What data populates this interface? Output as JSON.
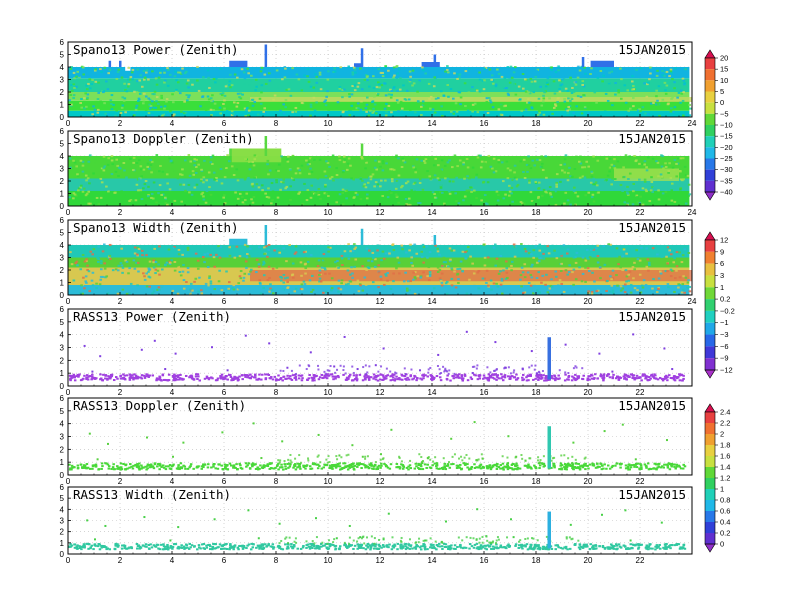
{
  "figure_date": "15JAN2015",
  "chart_data": [
    {
      "type": "heatmap",
      "title": "Spano13 Power (Zenith)",
      "date": "15JAN2015",
      "xlim": [
        0,
        24
      ],
      "ylim": [
        0,
        6
      ],
      "xticks": [
        "0",
        "2",
        "4",
        "6",
        "8",
        "10",
        "12",
        "14",
        "16",
        "18",
        "20",
        "22",
        "24"
      ],
      "yticks": [
        "0",
        "1",
        "2",
        "3",
        "4",
        "5",
        "6"
      ],
      "grid": true,
      "colorbar": "power",
      "layers": [
        {
          "y": [
            0.0,
            0.5
          ],
          "color": "#00c8c8"
        },
        {
          "y": [
            0.5,
            1.3
          ],
          "color": "#3adf3a"
        },
        {
          "y": [
            1.3,
            2.0
          ],
          "color": "#7ce05a"
        },
        {
          "y": [
            2.0,
            3.1
          ],
          "color": "#20d0a0"
        },
        {
          "y": [
            3.1,
            4.0
          ],
          "color": "#10b4e0"
        }
      ],
      "bands": [
        {
          "x": [
            7.0,
            24.0
          ],
          "y": [
            1.2,
            1.6
          ],
          "color": "#c8d860"
        }
      ],
      "top_segments": [
        {
          "x": [
            0.0,
            2.2
          ],
          "top": 4.0
        },
        {
          "x": [
            2.2,
            2.4
          ],
          "top": 3.7
        },
        {
          "x": [
            2.4,
            6.2
          ],
          "top": 4.0
        },
        {
          "x": [
            6.2,
            6.9
          ],
          "top": 4.5
        },
        {
          "x": [
            6.9,
            11.0
          ],
          "top": 4.0
        },
        {
          "x": [
            11.0,
            11.3
          ],
          "top": 4.3
        },
        {
          "x": [
            11.3,
            13.6
          ],
          "top": 4.0
        },
        {
          "x": [
            13.6,
            14.3
          ],
          "top": 4.4
        },
        {
          "x": [
            14.3,
            20.1
          ],
          "top": 4.0
        },
        {
          "x": [
            20.1,
            21.0
          ],
          "top": 4.5
        },
        {
          "x": [
            21.0,
            23.9
          ],
          "top": 4.0
        }
      ],
      "spikes": [
        {
          "x": 1.6,
          "top": 4.5
        },
        {
          "x": 2.0,
          "top": 4.5
        },
        {
          "x": 7.6,
          "top": 5.8
        },
        {
          "x": 11.3,
          "top": 5.5
        },
        {
          "x": 14.1,
          "top": 5.0
        },
        {
          "x": 19.8,
          "top": 4.8
        }
      ],
      "top_color": "#3070e8"
    },
    {
      "type": "heatmap",
      "title": "Spano13 Doppler (Zenith)",
      "date": "15JAN2015",
      "xlim": [
        0,
        24
      ],
      "ylim": [
        0,
        6
      ],
      "xticks": [
        "0",
        "2",
        "4",
        "6",
        "8",
        "10",
        "12",
        "14",
        "16",
        "18",
        "20",
        "22",
        "24"
      ],
      "yticks": [
        "0",
        "1",
        "2",
        "3",
        "4",
        "5",
        "6"
      ],
      "grid": true,
      "colorbar": "power",
      "layers": [
        {
          "y": [
            0.0,
            1.2
          ],
          "color": "#30d83a"
        },
        {
          "y": [
            1.2,
            2.2
          ],
          "color": "#28c8a8"
        },
        {
          "y": [
            2.2,
            4.0
          ],
          "color": "#48d838"
        }
      ],
      "bands": [
        {
          "x": [
            6.3,
            8.2
          ],
          "y": [
            3.5,
            4.6
          ],
          "color": "#98e048"
        },
        {
          "x": [
            21.0,
            23.5
          ],
          "y": [
            2.0,
            3.0
          ],
          "color": "#a8e050"
        }
      ],
      "top_segments": [
        {
          "x": [
            0.0,
            6.2
          ],
          "top": 4.0
        },
        {
          "x": [
            6.2,
            8.2
          ],
          "top": 4.6
        },
        {
          "x": [
            8.2,
            23.9
          ],
          "top": 4.0
        }
      ],
      "spikes": [
        {
          "x": 7.6,
          "top": 5.6
        },
        {
          "x": 11.3,
          "top": 5.0
        }
      ],
      "top_color": "#58d840"
    },
    {
      "type": "heatmap",
      "title": "Spano13 Width (Zenith)",
      "date": "15JAN2015",
      "xlim": [
        0,
        24
      ],
      "ylim": [
        0,
        6
      ],
      "xticks": [
        "0",
        "2",
        "4",
        "6",
        "8",
        "10",
        "12",
        "14",
        "16",
        "18",
        "20",
        "22",
        "24"
      ],
      "yticks": [
        "0",
        "1",
        "2",
        "3",
        "4",
        "5",
        "6"
      ],
      "grid": true,
      "colorbar": "width",
      "layers": [
        {
          "y": [
            0.0,
            0.8
          ],
          "color": "#2cbcd8"
        },
        {
          "y": [
            0.8,
            2.2
          ],
          "color": "#d8c850"
        },
        {
          "y": [
            2.2,
            3.0
          ],
          "color": "#58d038"
        },
        {
          "y": [
            3.0,
            4.0
          ],
          "color": "#20c8b8"
        }
      ],
      "bands": [
        {
          "x": [
            7.0,
            24.0
          ],
          "y": [
            1.1,
            2.0
          ],
          "color": "#e07048"
        }
      ],
      "top_segments": [
        {
          "x": [
            0.0,
            6.2
          ],
          "top": 4.0
        },
        {
          "x": [
            6.2,
            6.9
          ],
          "top": 4.5
        },
        {
          "x": [
            6.9,
            23.9
          ],
          "top": 4.0
        }
      ],
      "spikes": [
        {
          "x": 7.6,
          "top": 5.6
        },
        {
          "x": 11.3,
          "top": 5.3
        },
        {
          "x": 14.1,
          "top": 4.8
        }
      ],
      "top_color": "#2cbcd8"
    },
    {
      "type": "scatter",
      "title": "RASS13 Power (Zenith)",
      "date": "15JAN2015",
      "xlim": [
        0,
        24
      ],
      "ylim": [
        0,
        6
      ],
      "xticks": [
        "0",
        "2",
        "4",
        "6",
        "8",
        "10",
        "12",
        "14",
        "16",
        "18",
        "20",
        "22"
      ],
      "yticks": [
        "0",
        "1",
        "2",
        "3",
        "4",
        "5",
        "6"
      ],
      "grid": true,
      "colorbar": "rass_width",
      "base_band": {
        "y": [
          0.5,
          1.0
        ],
        "color": "#a040e0"
      },
      "column": {
        "x": 18.5,
        "y": [
          0.5,
          3.8
        ],
        "color": "#3870e0"
      },
      "point_color": "#8040e0",
      "points": [
        [
          0.6,
          3.2
        ],
        [
          1.2,
          2.4
        ],
        [
          2.8,
          2.9
        ],
        [
          3.3,
          3.6
        ],
        [
          4.1,
          2.6
        ],
        [
          5.5,
          3.1
        ],
        [
          6.8,
          4.0
        ],
        [
          7.7,
          3.4
        ],
        [
          9.3,
          2.7
        ],
        [
          10.6,
          3.9
        ],
        [
          12.1,
          3.0
        ],
        [
          14.2,
          2.5
        ],
        [
          15.3,
          4.3
        ],
        [
          16.4,
          3.5
        ],
        [
          17.8,
          2.8
        ],
        [
          19.1,
          3.3
        ],
        [
          20.4,
          2.6
        ],
        [
          21.7,
          4.1
        ],
        [
          22.9,
          3.0
        ],
        [
          0.9,
          1.2
        ],
        [
          3.7,
          1.4
        ],
        [
          6.1,
          1.3
        ],
        [
          8.4,
          1.5
        ],
        [
          10.2,
          1.6
        ],
        [
          11.1,
          1.4
        ],
        [
          11.8,
          1.7
        ],
        [
          13.5,
          1.3
        ],
        [
          16.8,
          1.5
        ],
        [
          20.9,
          1.2
        ],
        [
          23.2,
          1.4
        ]
      ]
    },
    {
      "type": "scatter",
      "title": "RASS13 Doppler (Zenith)",
      "date": "15JAN2015",
      "xlim": [
        0,
        24
      ],
      "ylim": [
        0,
        6
      ],
      "xticks": [
        "0",
        "2",
        "4",
        "6",
        "8",
        "10",
        "12",
        "14",
        "16",
        "18",
        "20",
        "22"
      ],
      "yticks": [
        "0",
        "1",
        "2",
        "3",
        "4",
        "5",
        "6"
      ],
      "grid": true,
      "colorbar": "rass_width",
      "base_band": {
        "y": [
          0.5,
          1.0
        ],
        "color": "#48d838"
      },
      "column": {
        "x": 18.5,
        "y": [
          0.5,
          3.8
        ],
        "color": "#30c8b0"
      },
      "point_color": "#58d040",
      "points": [
        [
          0.8,
          3.3
        ],
        [
          1.5,
          2.5
        ],
        [
          3.0,
          3.0
        ],
        [
          4.4,
          2.6
        ],
        [
          5.9,
          3.4
        ],
        [
          7.1,
          4.1
        ],
        [
          8.2,
          2.7
        ],
        [
          9.6,
          3.2
        ],
        [
          10.9,
          2.4
        ],
        [
          12.4,
          3.6
        ],
        [
          14.7,
          2.9
        ],
        [
          15.6,
          4.2
        ],
        [
          16.9,
          3.1
        ],
        [
          19.4,
          2.6
        ],
        [
          20.6,
          3.5
        ],
        [
          21.3,
          4.0
        ],
        [
          23.0,
          2.8
        ],
        [
          1.1,
          1.3
        ],
        [
          4.0,
          1.5
        ],
        [
          7.4,
          1.4
        ],
        [
          10.4,
          1.6
        ],
        [
          11.3,
          1.5
        ],
        [
          12.0,
          1.7
        ],
        [
          13.8,
          1.4
        ],
        [
          17.2,
          1.5
        ],
        [
          21.8,
          1.3
        ]
      ]
    },
    {
      "type": "scatter",
      "title": "RASS13 Width (Zenith)",
      "date": "15JAN2015",
      "xlim": [
        0,
        24
      ],
      "ylim": [
        0,
        6
      ],
      "xticks": [
        "0",
        "2",
        "4",
        "6",
        "8",
        "10",
        "12",
        "14",
        "16",
        "18",
        "20",
        "22"
      ],
      "yticks": [
        "0",
        "1",
        "2",
        "3",
        "4",
        "5",
        "6"
      ],
      "grid": true,
      "colorbar": "rass_width",
      "base_band": {
        "y": [
          0.5,
          1.0
        ],
        "color": "#30c8a0"
      },
      "column": {
        "x": 18.5,
        "y": [
          0.5,
          3.8
        ],
        "color": "#2cb0e0"
      },
      "point_color": "#48d048",
      "points": [
        [
          0.7,
          3.1
        ],
        [
          1.4,
          2.6
        ],
        [
          2.9,
          3.4
        ],
        [
          4.2,
          2.5
        ],
        [
          5.6,
          3.2
        ],
        [
          6.9,
          4.0
        ],
        [
          8.1,
          2.8
        ],
        [
          9.5,
          3.3
        ],
        [
          10.8,
          2.6
        ],
        [
          12.3,
          3.7
        ],
        [
          14.5,
          3.0
        ],
        [
          15.7,
          4.1
        ],
        [
          17.0,
          3.2
        ],
        [
          19.3,
          2.7
        ],
        [
          20.5,
          3.6
        ],
        [
          21.4,
          4.0
        ],
        [
          22.8,
          2.9
        ],
        [
          1.0,
          1.4
        ],
        [
          3.9,
          1.3
        ],
        [
          7.3,
          1.5
        ],
        [
          10.3,
          1.5
        ],
        [
          11.2,
          1.6
        ],
        [
          12.1,
          1.4
        ],
        [
          13.7,
          1.3
        ],
        [
          17.1,
          1.6
        ],
        [
          21.6,
          1.3
        ]
      ]
    }
  ],
  "colorbars": [
    {
      "id": "power",
      "labels": [
        "20",
        "15",
        "10",
        "5",
        "0",
        "−5",
        "−10",
        "−15",
        "−20",
        "−25",
        "−30",
        "−35",
        "−40"
      ],
      "colors": [
        "#d81050",
        "#e84040",
        "#f07030",
        "#f0a030",
        "#e8d040",
        "#c8e040",
        "#60d838",
        "#30d060",
        "#20d0b8",
        "#20b8e8",
        "#2878e8",
        "#3040d8",
        "#6030d0",
        "#9030c8"
      ]
    },
    {
      "id": "width",
      "labels": [
        "12",
        "9",
        "6",
        "3",
        "1",
        "0.2",
        "−0.2",
        "−1",
        "−3",
        "−6",
        "−9",
        "−12"
      ],
      "colors": [
        "#d81050",
        "#e84040",
        "#f08030",
        "#e8c040",
        "#c8e040",
        "#70d838",
        "#30d070",
        "#20d0c0",
        "#20a8e8",
        "#2868e8",
        "#4038d8",
        "#8030d0",
        "#a830c8"
      ]
    },
    {
      "id": "rass_width",
      "labels": [
        "2.4",
        "2.2",
        "2",
        "1.8",
        "1.6",
        "1.4",
        "1.2",
        "1",
        "0.8",
        "0.6",
        "0.4",
        "0.2",
        "0"
      ],
      "colors": [
        "#d81050",
        "#e84040",
        "#f07030",
        "#f0a030",
        "#e8d040",
        "#c8e040",
        "#60d838",
        "#30d060",
        "#20d0b8",
        "#20b8e8",
        "#2878e8",
        "#3040d8",
        "#6030d0",
        "#9030c8"
      ]
    }
  ]
}
